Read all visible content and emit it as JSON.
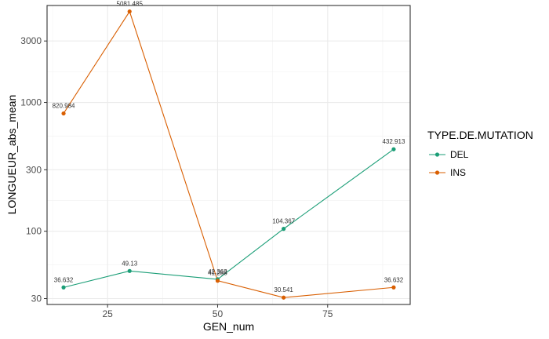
{
  "chart_data": {
    "type": "line",
    "xlabel": "GEN_num",
    "ylabel": "LONGUEUR_abs_mean",
    "x_ticks": [
      25,
      50,
      75
    ],
    "y_ticks": [
      30,
      100,
      300,
      1000,
      3000
    ],
    "y_scale": "log10",
    "xlim": [
      11.25,
      93.75
    ],
    "ylim": [
      27.0,
      5658.0
    ],
    "grid": true,
    "legend": {
      "title": "TYPE.DE.MUTATION",
      "position": "right"
    },
    "series": [
      {
        "name": "DEL",
        "color": "#1b9e77",
        "x": [
          15,
          30,
          50,
          65,
          90
        ],
        "y": [
          36.632,
          49.13,
          42.362,
          104.367,
          432.913
        ],
        "labels": [
          "36.632",
          "49.13",
          "42.362",
          "104.367",
          "432.913"
        ]
      },
      {
        "name": "INS",
        "color": "#d95f02",
        "x": [
          15,
          30,
          50,
          65,
          90
        ],
        "y": [
          820.984,
          5081.485,
          41.288,
          30.541,
          36.632
        ],
        "labels": [
          "820.984",
          "5081.485",
          "41.288",
          "30.541",
          "36.632"
        ]
      }
    ]
  }
}
